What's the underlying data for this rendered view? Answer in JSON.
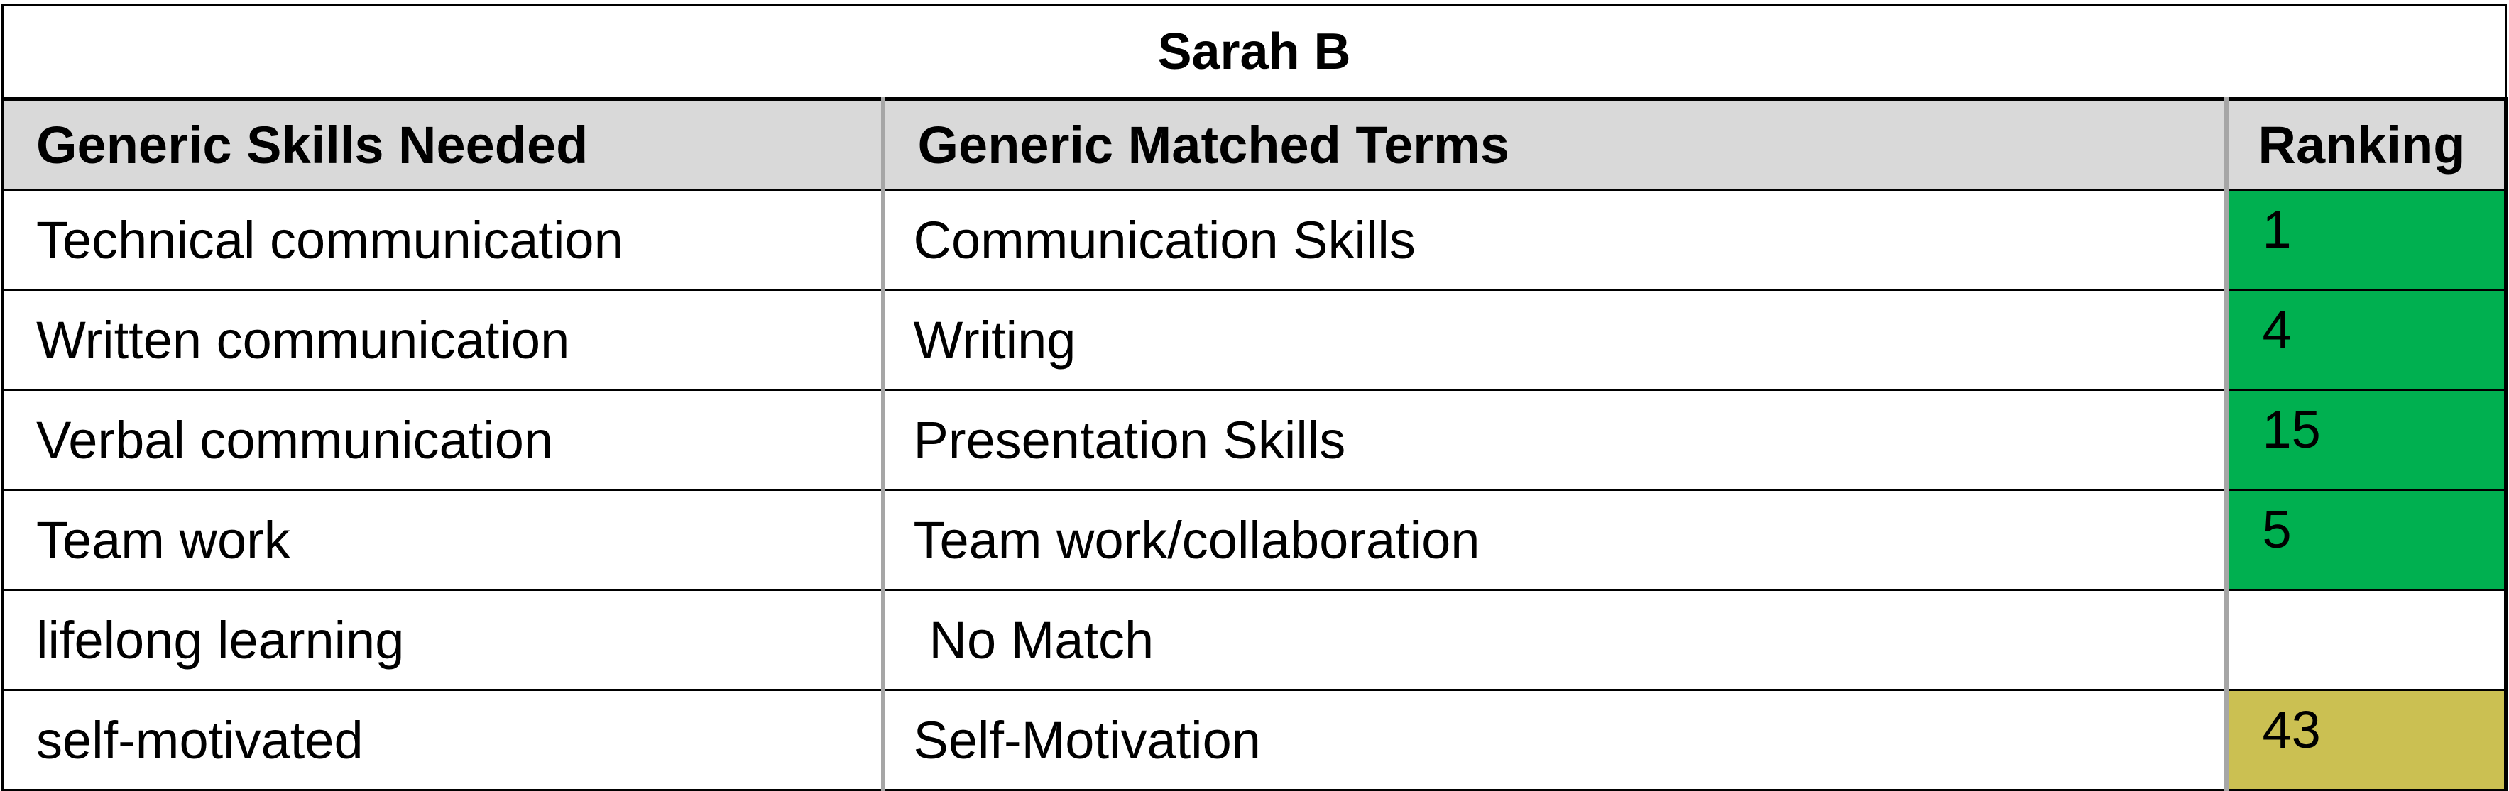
{
  "title": "Sarah B",
  "headers": {
    "skills": "Generic Skills Needed",
    "matched": "Generic Matched Terms",
    "ranking": "Ranking"
  },
  "colors": {
    "header_bg": "#d9d9d9",
    "green": "#00b050",
    "olive": "#cbc052"
  },
  "rows": [
    {
      "skill": "Technical communication",
      "matched": "Communication Skills",
      "ranking": "1",
      "rank_color": "green"
    },
    {
      "skill": "Written communication",
      "matched": "Writing",
      "ranking": "4",
      "rank_color": "green"
    },
    {
      "skill": "Verbal communication",
      "matched": "Presentation Skills",
      "ranking": "15",
      "rank_color": "green"
    },
    {
      "skill": "Team work",
      "matched": "Team work/collaboration",
      "ranking": "5",
      "rank_color": "green"
    },
    {
      "skill": "lifelong learning",
      "matched": "No Match",
      "ranking": "",
      "rank_color": "none"
    },
    {
      "skill": "self-motivated",
      "matched": "Self-Motivation",
      "ranking": "43",
      "rank_color": "olive"
    }
  ]
}
